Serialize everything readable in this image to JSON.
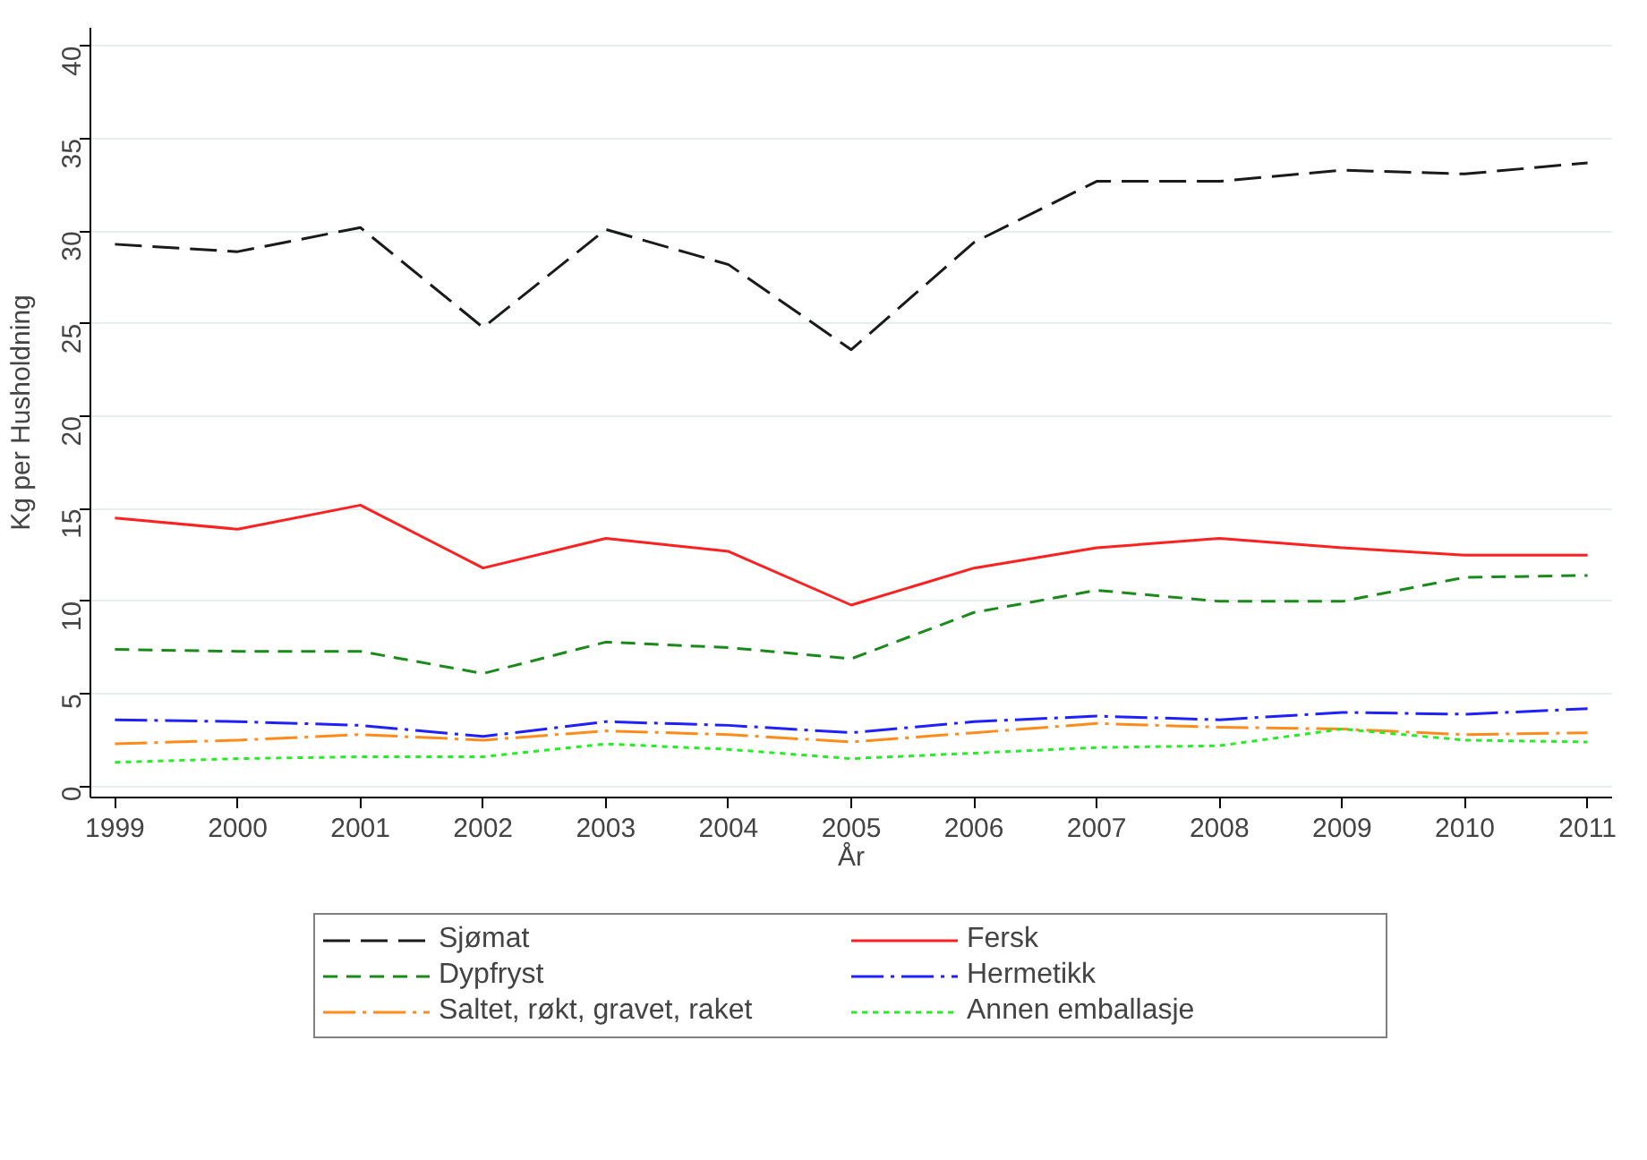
{
  "chart_data": {
    "type": "line",
    "xlabel": "År",
    "ylabel": "Kg per Husholdning",
    "x": [
      1999,
      2000,
      2001,
      2002,
      2003,
      2004,
      2005,
      2006,
      2007,
      2008,
      2009,
      2010,
      2011
    ],
    "xlim": [
      1998.8,
      2011.2
    ],
    "xticks": [
      1999,
      2000,
      2001,
      2002,
      2003,
      2004,
      2005,
      2006,
      2007,
      2008,
      2009,
      2010,
      2011
    ],
    "ylim": [
      -0.6,
      41
    ],
    "yticks": [
      0,
      5,
      10,
      15,
      20,
      25,
      30,
      35,
      40
    ],
    "grid": "y",
    "legend": "bottom",
    "marker": "none",
    "series": [
      {
        "name": "Sjømat",
        "color": "#1a1a1a",
        "line_style": "longdash",
        "values": [
          29.3,
          28.9,
          30.2,
          24.8,
          30.1,
          28.2,
          23.6,
          29.4,
          32.7,
          32.7,
          33.3,
          33.1,
          33.7
        ]
      },
      {
        "name": "Fersk",
        "color": "#ff2020",
        "line_style": "solid",
        "values": [
          14.5,
          13.9,
          15.2,
          11.8,
          13.4,
          12.7,
          9.8,
          11.8,
          12.9,
          13.4,
          12.9,
          12.5,
          12.5
        ]
      },
      {
        "name": "Dypfryst",
        "color": "#1a8a1a",
        "line_style": "dashed",
        "values": [
          7.4,
          7.3,
          7.3,
          6.1,
          7.8,
          7.5,
          6.9,
          9.4,
          10.6,
          10.0,
          10.0,
          11.3,
          11.4
        ]
      },
      {
        "name": "Hermetikk",
        "color": "#2020ff",
        "line_style": "dashdot",
        "values": [
          3.6,
          3.5,
          3.3,
          2.7,
          3.5,
          3.3,
          2.9,
          3.5,
          3.8,
          3.6,
          4.0,
          3.9,
          4.2
        ]
      },
      {
        "name": "Saltet, røkt, gravet, raket",
        "color": "#ff8c1a",
        "line_style": "dashdot",
        "values": [
          2.3,
          2.5,
          2.8,
          2.5,
          3.0,
          2.8,
          2.4,
          2.9,
          3.4,
          3.2,
          3.1,
          2.8,
          2.9
        ]
      },
      {
        "name": "Annen emballasje",
        "color": "#22ee22",
        "line_style": "dotted",
        "values": [
          1.3,
          1.5,
          1.6,
          1.6,
          2.3,
          2.0,
          1.5,
          1.8,
          2.1,
          2.2,
          3.1,
          2.5,
          2.4
        ]
      }
    ]
  }
}
